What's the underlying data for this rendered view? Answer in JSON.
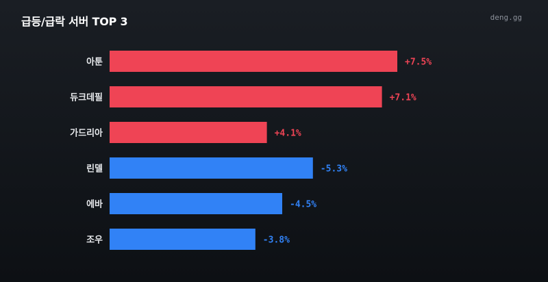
{
  "header": {
    "title": "급등/급락 서버 TOP 3",
    "brand": "deng.gg"
  },
  "colors": {
    "positive": "#ef4455",
    "negative": "#3182f6",
    "category_text": "#e6e8eb"
  },
  "chart_data": {
    "type": "bar",
    "orientation": "horizontal",
    "title": "급등/급락 서버 TOP 3",
    "categories": [
      "아툰",
      "듀크데필",
      "가드리아",
      "린델",
      "에바",
      "조우"
    ],
    "values": [
      7.5,
      7.1,
      4.1,
      -5.3,
      -4.5,
      -3.8
    ],
    "labels": [
      "+7.5%",
      "+7.1%",
      "+4.1%",
      "-5.3%",
      "-4.5%",
      "-3.8%"
    ],
    "unit": "%",
    "bar_length": "absolute value",
    "grid": false,
    "legend": "none"
  }
}
